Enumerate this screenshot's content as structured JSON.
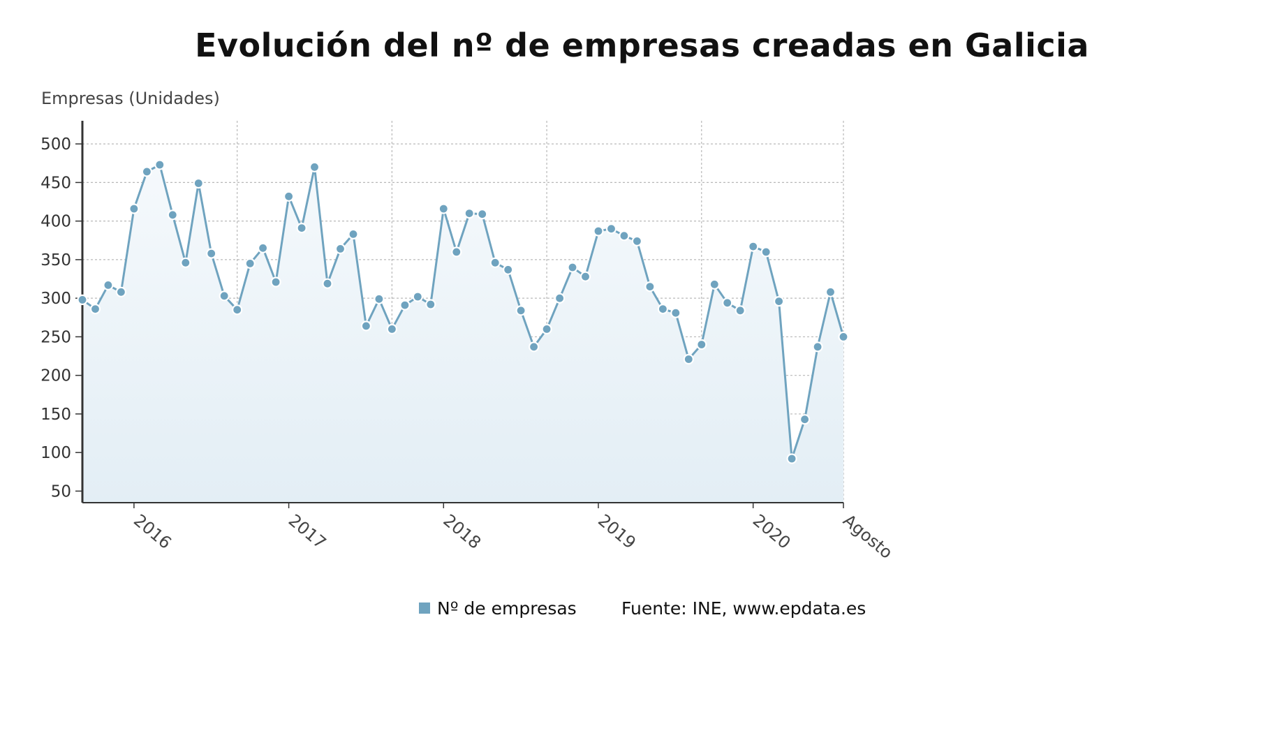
{
  "chart_data": {
    "type": "area",
    "title": "Evolución del nº de empresas creadas en Galicia",
    "ylabel": "Empresas (Unidades)",
    "xlabel": "",
    "ylim": [
      35,
      530
    ],
    "yticks": [
      50,
      100,
      150,
      200,
      250,
      300,
      350,
      400,
      450,
      500
    ],
    "x_tick_labels": [
      {
        "label": "2016",
        "index": 4
      },
      {
        "label": "2017",
        "index": 16
      },
      {
        "label": "2018",
        "index": 28
      },
      {
        "label": "2019",
        "index": 40
      },
      {
        "label": "2020",
        "index": 52
      },
      {
        "label": "Agosto",
        "index": 59
      }
    ],
    "series": [
      {
        "name": "Nº de empresas",
        "color": "#6fa3bf",
        "values": [
          298,
          286,
          317,
          308,
          416,
          464,
          473,
          408,
          346,
          449,
          358,
          303,
          285,
          345,
          365,
          321,
          432,
          391,
          470,
          319,
          364,
          383,
          264,
          299,
          260,
          291,
          302,
          292,
          416,
          360,
          410,
          409,
          346,
          337,
          284,
          237,
          260,
          300,
          340,
          328,
          387,
          390,
          381,
          374,
          315,
          286,
          281,
          221,
          240,
          318,
          294,
          284,
          367,
          360,
          296,
          92,
          143,
          237,
          308,
          250
        ]
      }
    ],
    "grid": true,
    "legend": "bottom-center"
  },
  "legend": {
    "series_label": "Nº de empresas",
    "source": "Fuente: INE, www.epdata.es"
  }
}
